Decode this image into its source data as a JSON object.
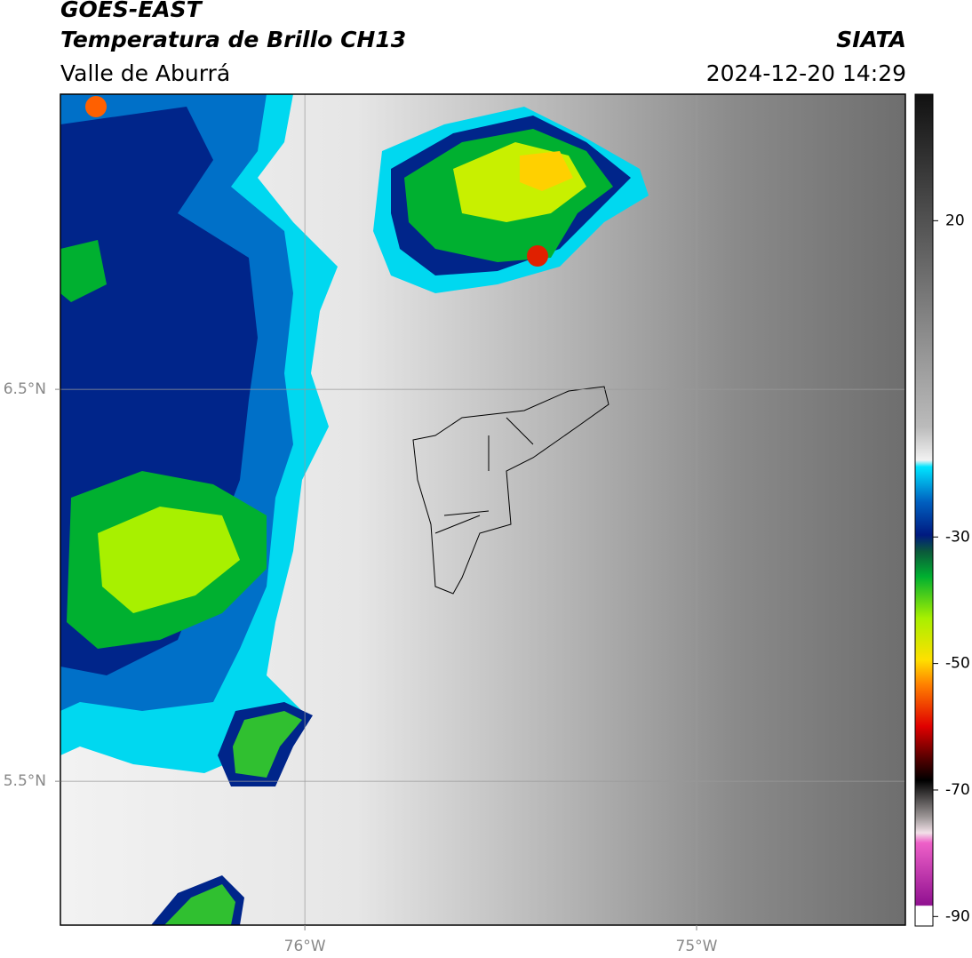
{
  "header": {
    "title": "GOES-EAST",
    "subtitle": "Temperatura de Brillo CH13",
    "region": "Valle de Aburrá",
    "source": "SIATA",
    "timestamp": "2024-12-20 14:29"
  },
  "map": {
    "lon_lim": [
      -76.624,
      -74.467
    ],
    "lat_lim": [
      5.133,
      7.253
    ],
    "lon_ticks": [
      {
        "value": -76,
        "label": "76°W"
      },
      {
        "value": -75,
        "label": "75°W"
      }
    ],
    "lat_ticks": [
      {
        "value": 6.5,
        "label": "6.5°N"
      },
      {
        "value": 5.5,
        "label": "5.5°N"
      }
    ],
    "grid": true
  },
  "colorbar": {
    "lim": [
      -91.5,
      40
    ],
    "ticks": [
      20,
      -30,
      -50,
      -70,
      -90
    ]
  }
}
